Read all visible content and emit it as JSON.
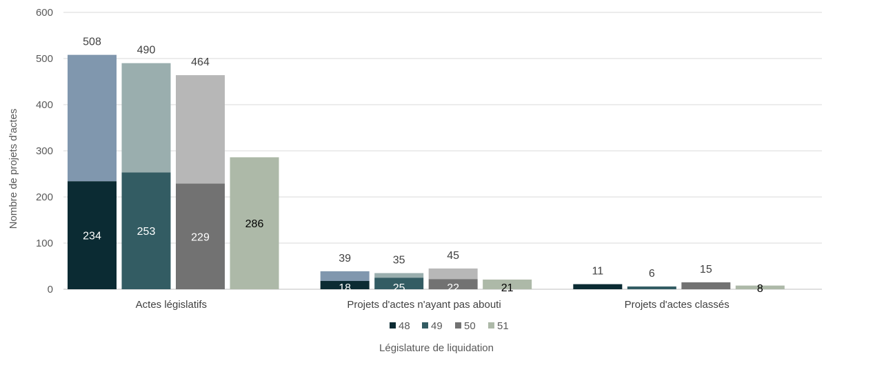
{
  "chart_data": {
    "type": "bar",
    "stacked_overlay": true,
    "xlabel": "Législature de liquidation",
    "ylabel": "Nombre de projets d'actes",
    "ylim": [
      0,
      600
    ],
    "yticks": [
      0,
      100,
      200,
      300,
      400,
      500,
      600
    ],
    "grid": true,
    "legend_position": "bottom",
    "categories": [
      "Actes législatifs",
      "Projets d'actes n'ayant pas abouti",
      "Projets d'actes classés"
    ],
    "series": [
      {
        "name": "48",
        "color": "#0b2b33",
        "light_color": "#8097ae",
        "inner_label_color": "#ffffff",
        "base": [
          234,
          18,
          11
        ],
        "total": [
          508,
          39,
          11
        ]
      },
      {
        "name": "49",
        "color": "#335c63",
        "light_color": "#9aaeae",
        "inner_label_color": "#ffffff",
        "base": [
          253,
          25,
          6
        ],
        "total": [
          490,
          35,
          6
        ]
      },
      {
        "name": "50",
        "color": "#727272",
        "light_color": "#b7b7b7",
        "inner_label_color": "#ffffff",
        "base": [
          229,
          22,
          15
        ],
        "total": [
          464,
          45,
          15
        ]
      },
      {
        "name": "51",
        "color": "#adb9a8",
        "light_color": "#adb9a8",
        "inner_label_color": "#000000",
        "base": [
          286,
          21,
          8
        ],
        "total": [
          null,
          null,
          null
        ]
      }
    ],
    "inner_labels": [
      [
        "234",
        "18",
        ""
      ],
      [
        "253",
        "25",
        ""
      ],
      [
        "229",
        "22",
        ""
      ],
      [
        "286",
        "21",
        "8"
      ]
    ],
    "outer_labels": [
      [
        "508",
        "39",
        "11"
      ],
      [
        "490",
        "35",
        "6"
      ],
      [
        "464",
        "45",
        "15"
      ],
      [
        "",
        "",
        ""
      ]
    ]
  }
}
